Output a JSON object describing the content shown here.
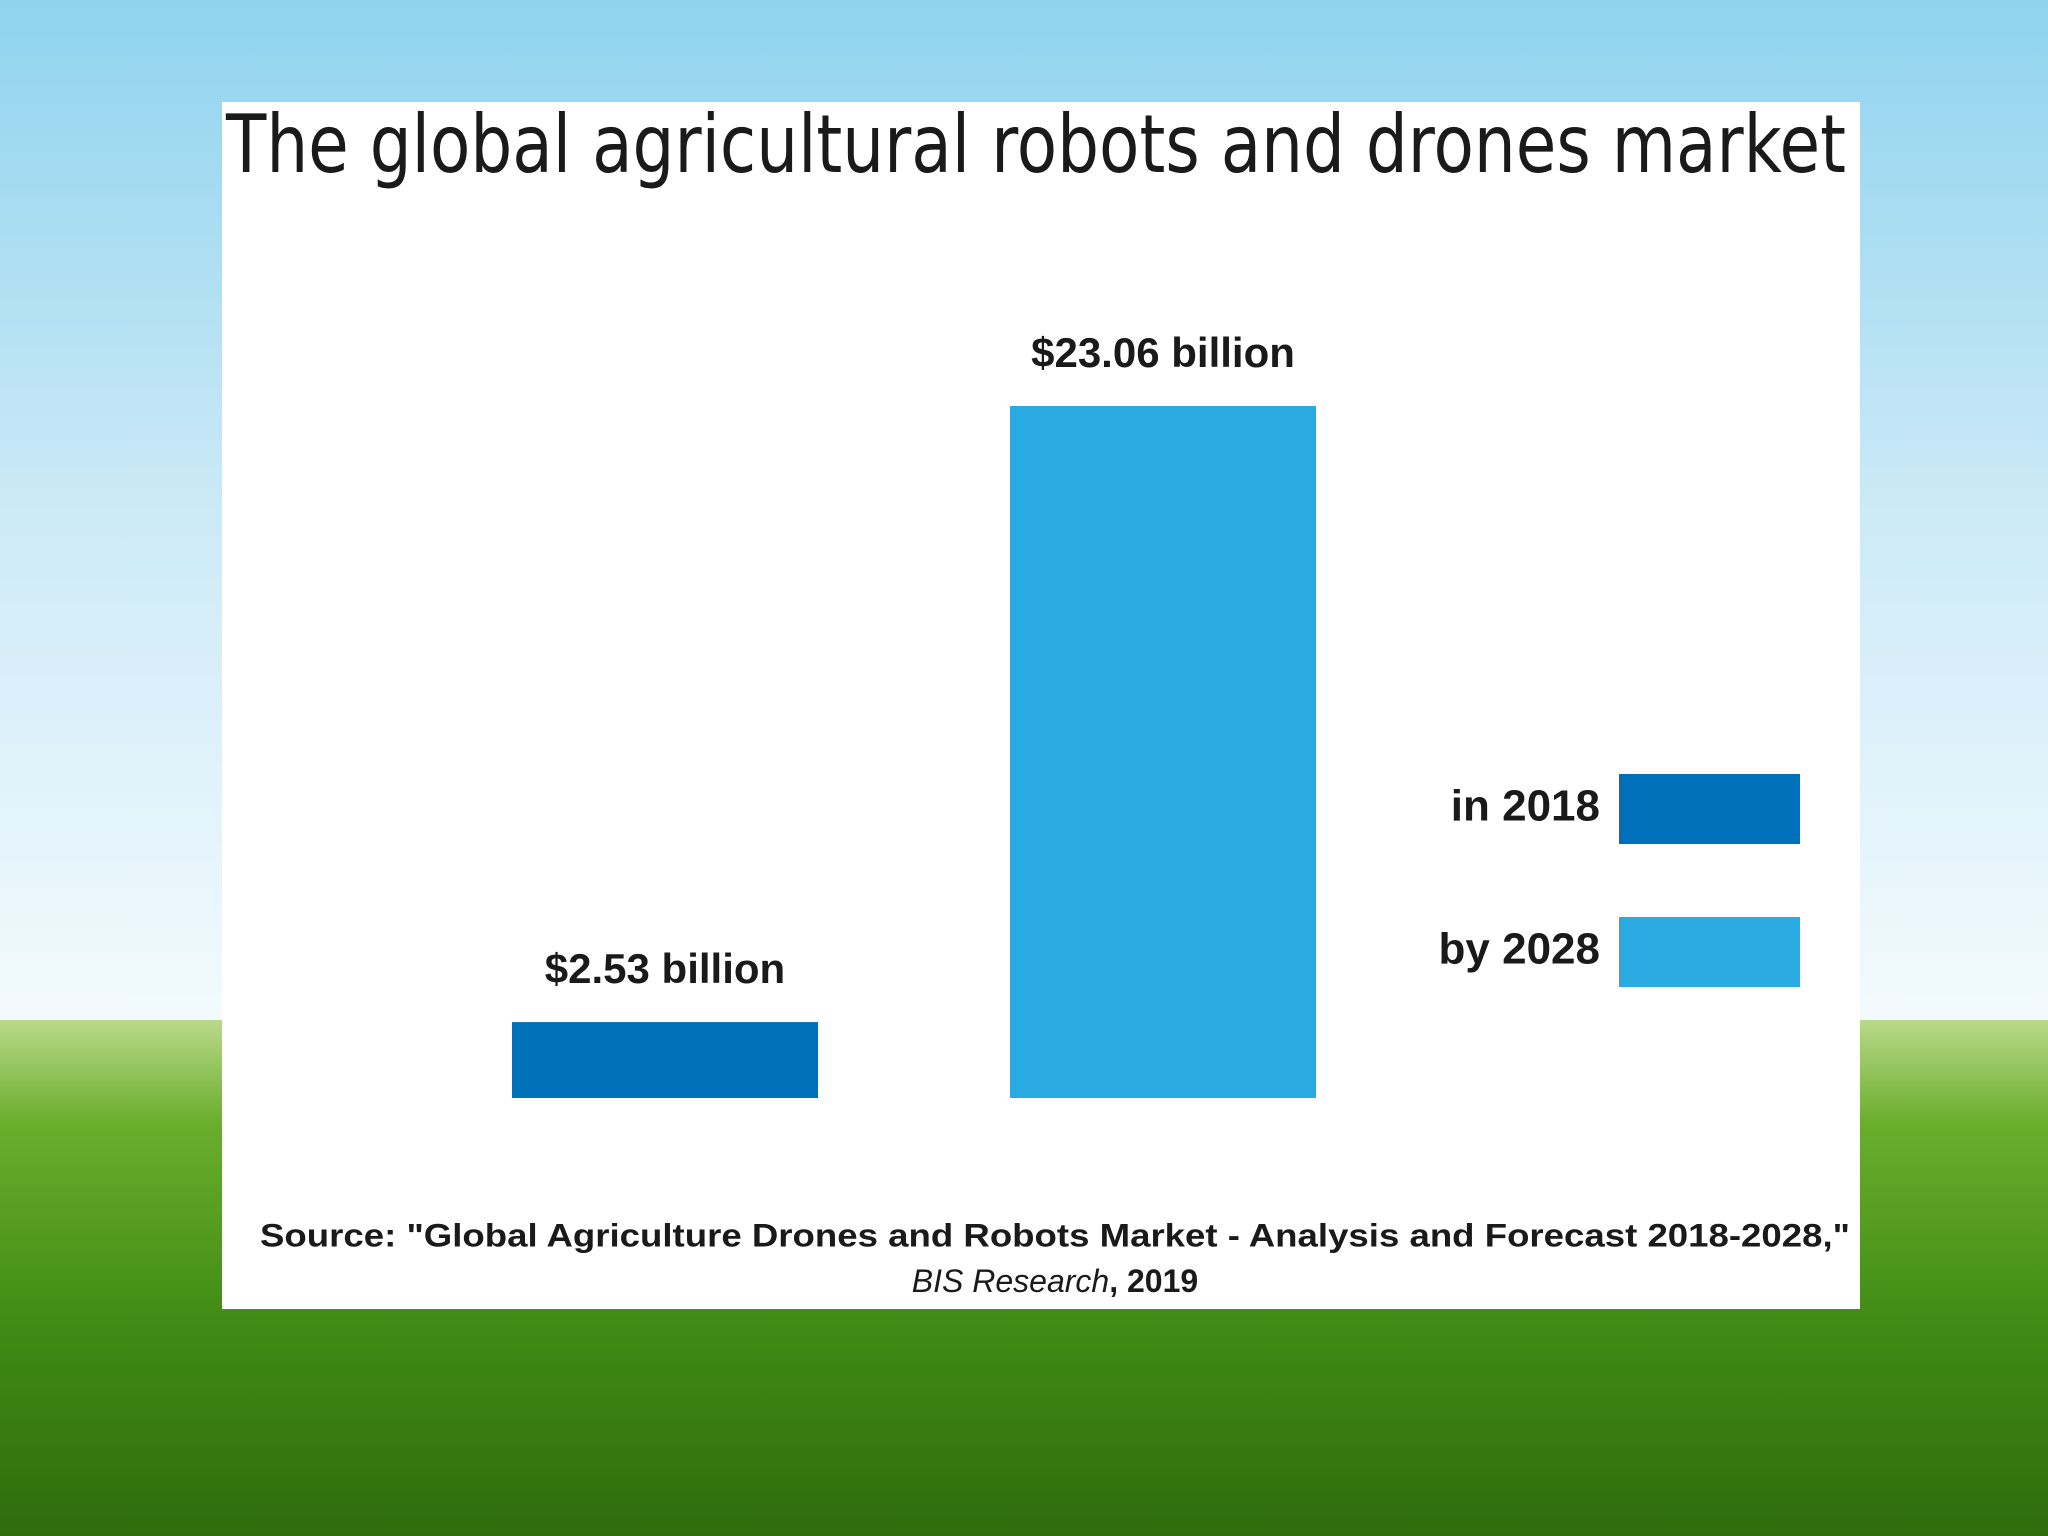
{
  "chart_data": {
    "type": "bar",
    "title": "The global agricultural robots and drones market",
    "series": [
      {
        "name": "in 2018",
        "color": "#0170bb",
        "values": [
          2.53
        ],
        "value_labels": [
          "$2.53 billion"
        ]
      },
      {
        "name": "by 2028",
        "color": "#29abe2",
        "values": [
          23.06
        ],
        "value_labels": [
          "$23.06 billion"
        ]
      }
    ],
    "source": "Source: \"Global Agriculture Drones and Robots Market - Analysis and Forecast 2018-2028,\"",
    "source_publisher": "BIS Research",
    "source_year": ", 2019"
  }
}
